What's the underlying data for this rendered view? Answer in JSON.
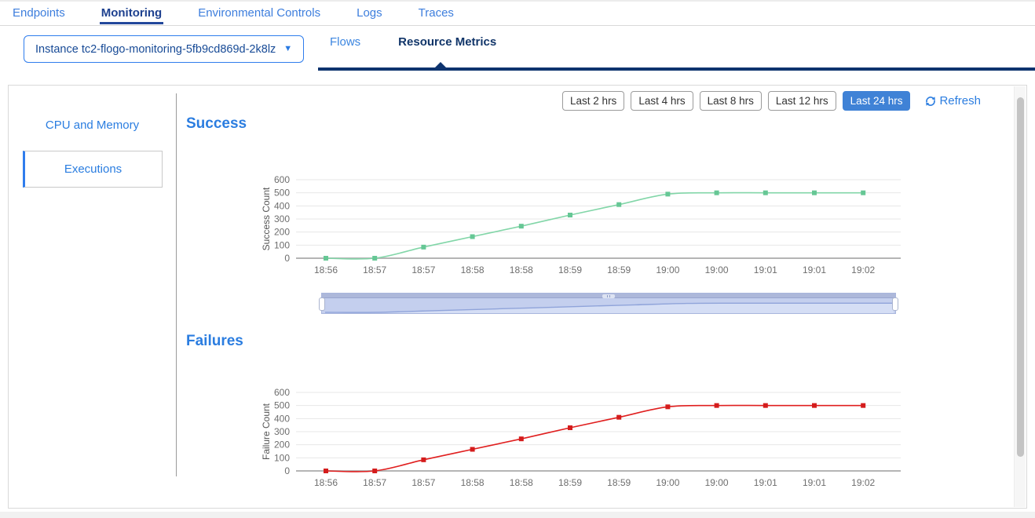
{
  "nav": {
    "items": [
      {
        "label": "Endpoints",
        "active": false
      },
      {
        "label": "Monitoring",
        "active": true
      },
      {
        "label": "Environmental Controls",
        "active": false
      },
      {
        "label": "Logs",
        "active": false
      },
      {
        "label": "Traces",
        "active": false
      }
    ]
  },
  "subheader": {
    "instance_selector": {
      "value": "Instance tc2-flogo-monitoring-5fb9cd869d-2k8lz",
      "caret": "▼"
    },
    "tabs": [
      {
        "label": "Flows",
        "active": false
      },
      {
        "label": "Resource Metrics",
        "active": true
      }
    ]
  },
  "sidebar": {
    "items": [
      {
        "label": "CPU and Memory",
        "selected": false
      },
      {
        "label": "Executions",
        "selected": true
      }
    ]
  },
  "toolbar": {
    "time_ranges": [
      {
        "label": "Last 2 hrs",
        "selected": false
      },
      {
        "label": "Last 4 hrs",
        "selected": false
      },
      {
        "label": "Last 8 hrs",
        "selected": false
      },
      {
        "label": "Last 12 hrs",
        "selected": false
      },
      {
        "label": "Last 24 hrs",
        "selected": true
      }
    ],
    "refresh_label": "Refresh",
    "refresh_icon": "refresh-icon"
  },
  "colors": {
    "accent_blue": "#2b7de0",
    "active_navy": "#0d336e",
    "selected_button_bg": "#3f82d6",
    "success_line": "#82d6a8",
    "success_marker": "#66c795",
    "failure_line": "#e01f1f",
    "failure_marker": "#d41c1c",
    "grid": "#e7e7e7",
    "axis": "#b5b5b5",
    "tick_text": "#6e6e6e",
    "datazoom_fill": "#c4cfee",
    "datazoom_line": "#90a4da"
  },
  "chart_data": [
    {
      "type": "line",
      "title": "Success",
      "ylabel": "Success Count",
      "xlabel": "",
      "categories": [
        "18:56",
        "18:57",
        "18:57",
        "18:58",
        "18:58",
        "18:59",
        "18:59",
        "19:00",
        "19:00",
        "19:01",
        "19:01",
        "19:02"
      ],
      "values": [
        0,
        0,
        85,
        165,
        245,
        330,
        410,
        490,
        500,
        500,
        500,
        500
      ],
      "ylim": [
        0,
        600
      ],
      "yticks": [
        0,
        100,
        200,
        300,
        400,
        500,
        600
      ],
      "grid": true,
      "legend_position": "none",
      "line_color": "#82d6a8",
      "marker_color": "#66c795",
      "marker_shape": "square"
    },
    {
      "type": "line",
      "title": "Failures",
      "ylabel": "Failure Count",
      "xlabel": "",
      "categories": [
        "18:56",
        "18:57",
        "18:57",
        "18:58",
        "18:58",
        "18:59",
        "18:59",
        "19:00",
        "19:00",
        "19:01",
        "19:01",
        "19:02"
      ],
      "values": [
        0,
        0,
        85,
        165,
        245,
        330,
        410,
        490,
        500,
        500,
        500,
        500
      ],
      "ylim": [
        0,
        600
      ],
      "yticks": [
        0,
        100,
        200,
        300,
        400,
        500,
        600
      ],
      "grid": true,
      "legend_position": "none",
      "line_color": "#e01f1f",
      "marker_color": "#d41c1c",
      "marker_shape": "square"
    }
  ]
}
